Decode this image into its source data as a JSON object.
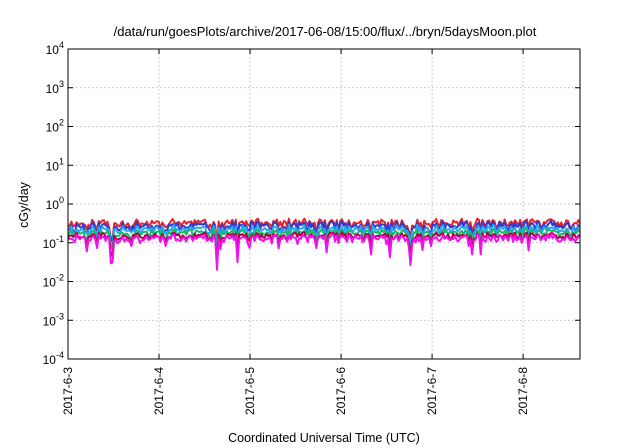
{
  "chart_data": {
    "type": "line",
    "title": "/data/run/goesPlots/archive/2017-06-08/15:00/flux/../bryn/5daysMoon.plot",
    "xlabel": "Coordinated Universal Time (UTC)",
    "ylabel": "cGy/day",
    "yscale": "log",
    "ylim": [
      0.0001,
      10000
    ],
    "xlim": [
      "2017-06-03 00:00",
      "2017-06-08 15:00"
    ],
    "y_ticks": [
      {
        "mantissa": "10",
        "exp": "-4"
      },
      {
        "mantissa": "10",
        "exp": "-3"
      },
      {
        "mantissa": "10",
        "exp": "-2"
      },
      {
        "mantissa": "10",
        "exp": "-1"
      },
      {
        "mantissa": "10",
        "exp": "0"
      },
      {
        "mantissa": "10",
        "exp": "1"
      },
      {
        "mantissa": "10",
        "exp": "2"
      },
      {
        "mantissa": "10",
        "exp": "3"
      },
      {
        "mantissa": "10",
        "exp": "4"
      }
    ],
    "x_ticks": [
      "2017-6-3",
      "2017-6-4",
      "2017-6-5",
      "2017-6-6",
      "2017-6-7",
      "2017-6-8"
    ],
    "grid": true,
    "legend": "none",
    "series": [
      {
        "color": "#e8232b",
        "baseline": 0.32,
        "spread": 0.12,
        "dip_depth": 0.45,
        "seed": 11
      },
      {
        "color": "#2a3bd6",
        "baseline": 0.27,
        "spread": 0.12,
        "dip_depth": 0.45,
        "seed": 11
      },
      {
        "color": "#29a8ee",
        "baseline": 0.22,
        "spread": 0.08,
        "dip_depth": 0.45,
        "seed": 11
      },
      {
        "color": "#19b867",
        "baseline": 0.18,
        "spread": 0.05,
        "dip_depth": 0.5,
        "seed": 11
      },
      {
        "color": "#b5004b",
        "baseline": 0.15,
        "spread": 0.04,
        "dip_depth": 0.55,
        "seed": 11
      },
      {
        "color": "#ee12ee",
        "baseline": 0.13,
        "spread": 0.04,
        "dip_depth": 0.65,
        "seed": 11
      }
    ]
  }
}
